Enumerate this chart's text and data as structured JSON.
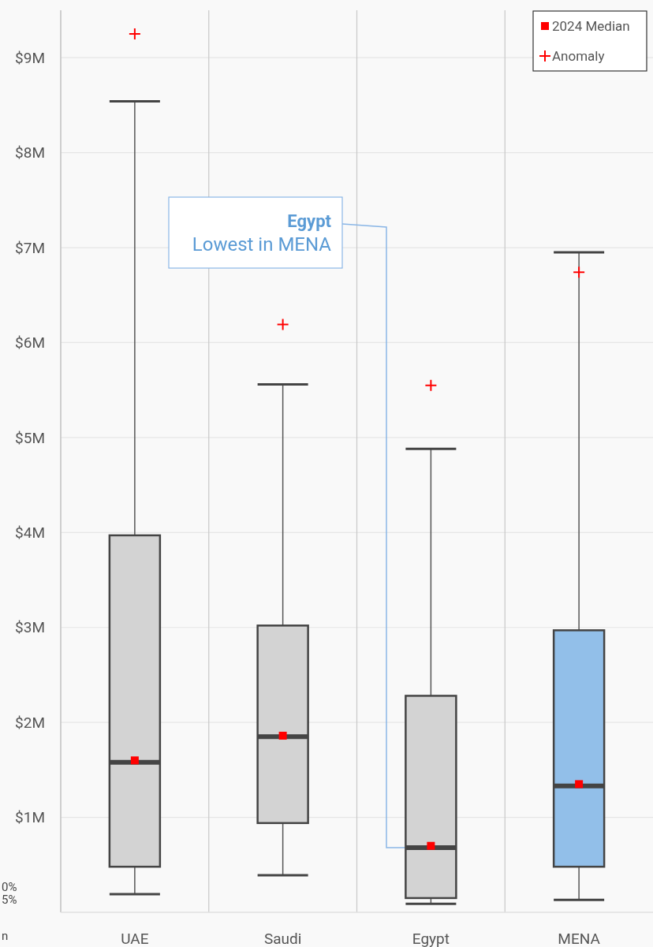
{
  "chart_data": {
    "type": "box",
    "categories": [
      "UAE",
      "Saudi",
      "Egypt",
      "MENA"
    ],
    "ylim": [
      0,
      9.5
    ],
    "yticks": [
      {
        "value": 1,
        "label": "$1M"
      },
      {
        "value": 2,
        "label": "$2M"
      },
      {
        "value": 3,
        "label": "$3M"
      },
      {
        "value": 4,
        "label": "$4M"
      },
      {
        "value": 5,
        "label": "$5M"
      },
      {
        "value": 6,
        "label": "$6M"
      },
      {
        "value": 7,
        "label": "$7M"
      },
      {
        "value": 8,
        "label": "$8M"
      },
      {
        "value": 9,
        "label": "$9M"
      }
    ],
    "grid": true,
    "legend": "top right",
    "series": [
      {
        "type": "box",
        "colors": [
          "#d3d3d3",
          "#d3d3d3",
          "#d3d3d3",
          "#92bfe9"
        ],
        "boxes": [
          {
            "low": 0.19,
            "q1": 0.48,
            "median": 1.58,
            "q3": 3.97,
            "high": 8.54
          },
          {
            "low": 0.39,
            "q1": 0.94,
            "median": 1.85,
            "q3": 3.02,
            "high": 5.56
          },
          {
            "low": 0.09,
            "q1": 0.15,
            "median": 0.68,
            "q3": 2.28,
            "high": 4.88
          },
          {
            "low": 0.13,
            "q1": 0.48,
            "median": 1.33,
            "q3": 2.97,
            "high": 6.95
          }
        ]
      },
      {
        "type": "scatter",
        "name": "2024 Median",
        "color": "#ff0000",
        "marker": "square",
        "x": [
          "UAE",
          "Saudi",
          "Egypt",
          "MENA"
        ],
        "values": [
          1.6,
          1.86,
          0.7,
          1.35
        ]
      },
      {
        "type": "scatter",
        "name": "Anomaly",
        "color": "#ff0000",
        "marker": "cross",
        "x": [
          "UAE",
          "Saudi",
          "Egypt",
          "MENA"
        ],
        "values": [
          9.25,
          6.19,
          5.55,
          6.74
        ]
      }
    ],
    "annotations": [
      {
        "text": "Egypt\nLowest in MENA",
        "x": "Egypt",
        "y": 0.68
      },
      "0%",
      "5%",
      "n"
    ]
  }
}
